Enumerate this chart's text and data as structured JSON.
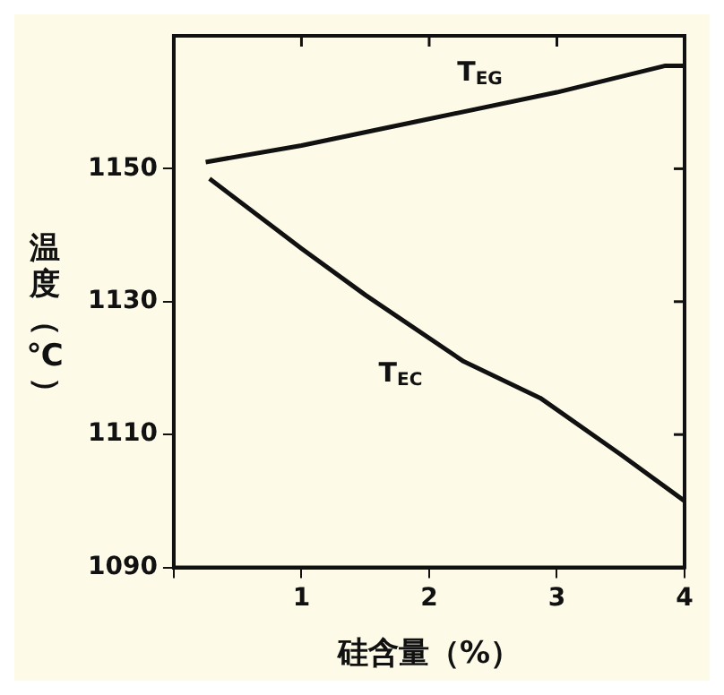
{
  "chart_data": {
    "type": "line",
    "xlabel": "硅含量（%）",
    "ylabel": "温度（℃）",
    "xlim": [
      0,
      4
    ],
    "xticks": [
      {
        "value": 0,
        "label": null
      },
      1,
      2,
      3,
      4
    ],
    "ylim": [
      1090,
      1170
    ],
    "yticks": [
      1090,
      1110,
      1130,
      1150
    ],
    "grid": false,
    "legend": false,
    "marker": "none",
    "line_style": "solid",
    "series": [
      {
        "name": "T$_{EG}$",
        "color": "#111111",
        "x": [
          0.25,
          1,
          2,
          3,
          3.85,
          4
        ],
        "values": [
          1151,
          1153.5,
          1157.5,
          1161.5,
          1165.5,
          1165.5
        ]
      },
      {
        "name": "T$_{EC}$",
        "color": "#111111",
        "x": [
          0.28,
          1,
          1.5,
          2.27,
          2.87,
          3.5,
          4
        ],
        "values": [
          1148.5,
          1138,
          1131,
          1121,
          1115.5,
          1107,
          1100
        ]
      }
    ]
  }
}
